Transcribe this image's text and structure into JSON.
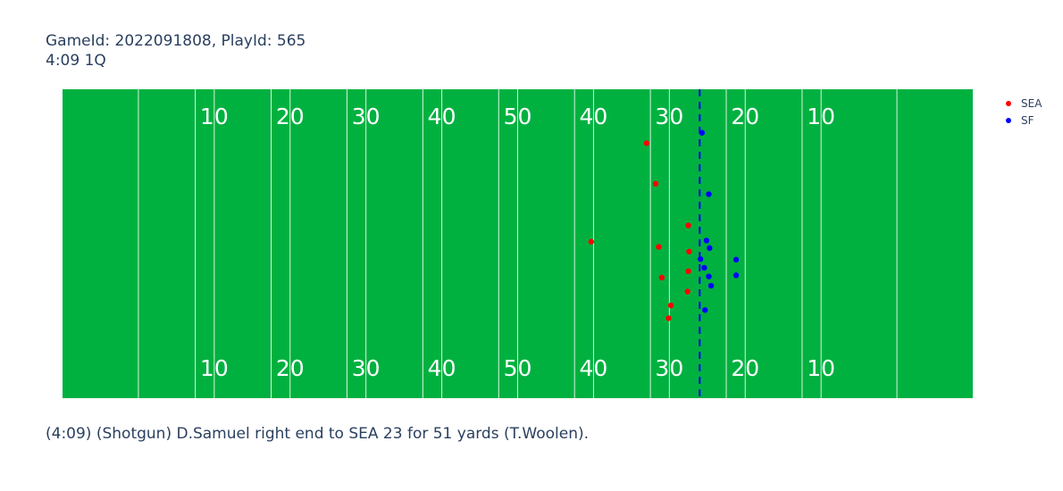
{
  "title": {
    "line1": "GameId: 2022091808, PlayId: 565",
    "line2": "4:09 1Q"
  },
  "caption": "(4:09) (Shotgun) D.Samuel right end to SEA 23 for 51 yards (T.Woolen).",
  "colors": {
    "field": "#00b140",
    "lines": "#ffffff",
    "scrimmage": "#0000ff",
    "SEA": "#ff0000",
    "SF": "#0000ff"
  },
  "chart_data": {
    "type": "scatter",
    "xlim": [
      0,
      120
    ],
    "ylim": [
      0,
      53.3
    ],
    "grid": false,
    "legend_position": "top-right",
    "yard_numbers": [
      "10",
      "20",
      "30",
      "40",
      "50",
      "40",
      "30",
      "20",
      "10"
    ],
    "line_of_scrimmage_x": 84,
    "series": [
      {
        "name": "SEA",
        "color": "#ff0000",
        "points": [
          {
            "x": 77.0,
            "y": 44.0
          },
          {
            "x": 78.2,
            "y": 37.0
          },
          {
            "x": 69.7,
            "y": 27.0
          },
          {
            "x": 78.6,
            "y": 26.1
          },
          {
            "x": 82.5,
            "y": 29.8
          },
          {
            "x": 82.6,
            "y": 25.3
          },
          {
            "x": 82.5,
            "y": 21.9
          },
          {
            "x": 79.0,
            "y": 20.8
          },
          {
            "x": 82.4,
            "y": 18.4
          },
          {
            "x": 80.2,
            "y": 16.0
          },
          {
            "x": 79.9,
            "y": 13.8
          }
        ]
      },
      {
        "name": "SF",
        "color": "#0000ff",
        "points": [
          {
            "x": 84.3,
            "y": 45.8
          },
          {
            "x": 85.2,
            "y": 35.2
          },
          {
            "x": 84.9,
            "y": 27.2
          },
          {
            "x": 85.3,
            "y": 25.9
          },
          {
            "x": 88.8,
            "y": 23.9
          },
          {
            "x": 84.1,
            "y": 24.0
          },
          {
            "x": 84.6,
            "y": 22.5
          },
          {
            "x": 88.8,
            "y": 21.2
          },
          {
            "x": 85.2,
            "y": 21.0
          },
          {
            "x": 85.5,
            "y": 19.4
          },
          {
            "x": 84.7,
            "y": 15.2
          }
        ]
      }
    ]
  }
}
